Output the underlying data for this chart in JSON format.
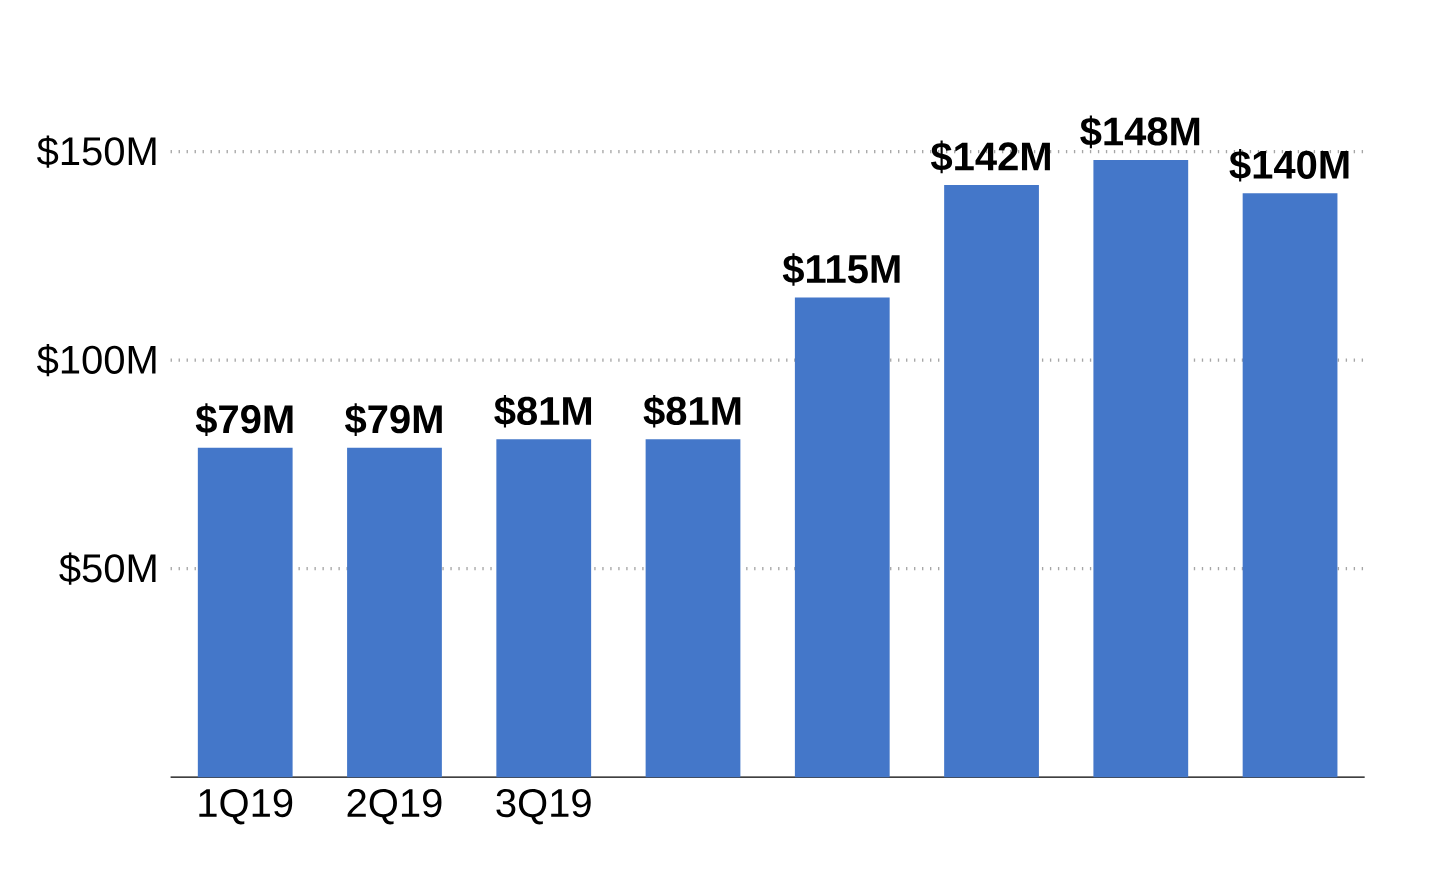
{
  "chart_data": {
    "type": "bar",
    "categories": [
      "1Q19",
      "2Q19",
      "3Q19",
      null,
      null,
      null,
      null,
      null
    ],
    "values": [
      79,
      79,
      81,
      81,
      115,
      142,
      148,
      140
    ],
    "value_labels": [
      "$79M",
      "$79M",
      "$81M",
      "$81M",
      "$115M",
      "$142M",
      "$148M",
      "$140M"
    ],
    "color": "#4477c9",
    "ylim": [
      0,
      150
    ],
    "yticks": [
      {
        "value": 50,
        "label": "$50M"
      },
      {
        "value": 100,
        "label": "$100M"
      },
      {
        "value": 150,
        "label": "$150M"
      }
    ],
    "grid": "y"
  }
}
